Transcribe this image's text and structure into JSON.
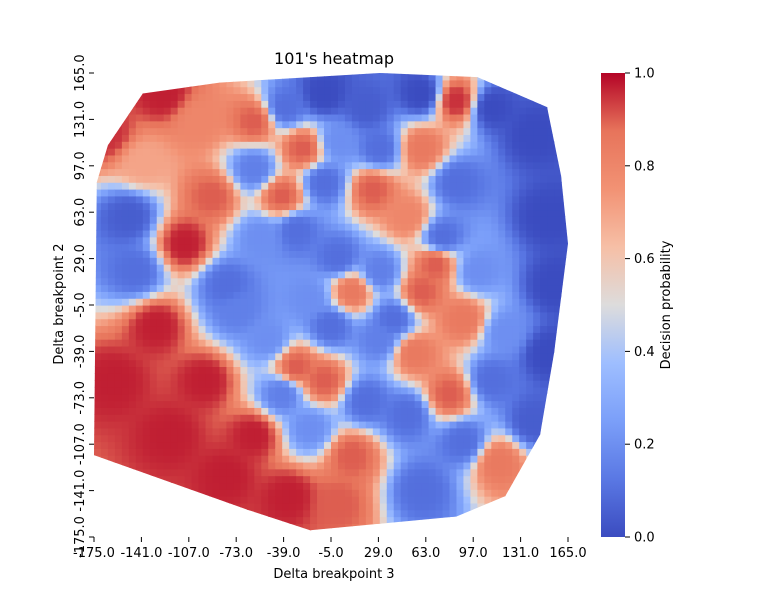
{
  "chart_data": {
    "type": "heatmap",
    "title": "101's heatmap",
    "xlabel": "Delta breakpoint 3",
    "ylabel": "Delta breakpoint 2",
    "colorbar_label": "Decision probability",
    "colormap": "coolwarm",
    "colors": {
      "low": "#3b4cc0",
      "mid": "#dddcdc",
      "high": "#b40426"
    },
    "x_ticks": [
      "-175.0",
      "-141.0",
      "-107.0",
      "-73.0",
      "-39.0",
      "-5.0",
      "29.0",
      "63.0",
      "97.0",
      "131.0",
      "165.0"
    ],
    "y_ticks": [
      "165.0",
      "131.0",
      "97.0",
      "63.0",
      "29.0",
      "-5.0",
      "-39.0",
      "-73.0",
      "-107.0",
      "-141.0",
      "-175.0"
    ],
    "xlim": [
      -175,
      165
    ],
    "ylim": [
      -175,
      165
    ],
    "colorbar_ticks": [
      "0.0",
      "0.2",
      "0.4",
      "0.6",
      "0.8",
      "1.0"
    ],
    "colorbar_range": [
      0,
      1
    ],
    "hull": [
      [
        -175,
        -115
      ],
      [
        -65,
        -155
      ],
      [
        -20,
        -170
      ],
      [
        85,
        -160
      ],
      [
        120,
        -145
      ],
      [
        145,
        -100
      ],
      [
        155,
        -40
      ],
      [
        160,
        0
      ],
      [
        165,
        40
      ],
      [
        160,
        90
      ],
      [
        150,
        140
      ],
      [
        100,
        162
      ],
      [
        30,
        165
      ],
      [
        -85,
        158
      ],
      [
        -140,
        150
      ],
      [
        -165,
        112
      ],
      [
        -173,
        85
      ]
    ],
    "samples": [
      {
        "x": -150,
        "y": 60,
        "v": 0.05
      },
      {
        "x": -145,
        "y": 20,
        "v": 0.1
      },
      {
        "x": -80,
        "y": 10,
        "v": 0.1
      },
      {
        "x": -72,
        "y": -8,
        "v": 0.15
      },
      {
        "x": -38,
        "y": 140,
        "v": 0.1
      },
      {
        "x": -10,
        "y": 150,
        "v": 0.0
      },
      {
        "x": 20,
        "y": 140,
        "v": 0.05
      },
      {
        "x": 60,
        "y": 150,
        "v": 0.0
      },
      {
        "x": 85,
        "y": 145,
        "v": 0.95
      },
      {
        "x": 110,
        "y": 140,
        "v": 0.0
      },
      {
        "x": 140,
        "y": 120,
        "v": 0.0
      },
      {
        "x": 150,
        "y": 60,
        "v": 0.0
      },
      {
        "x": 155,
        "y": 10,
        "v": 0.0
      },
      {
        "x": 150,
        "y": -40,
        "v": 0.0
      },
      {
        "x": 140,
        "y": -90,
        "v": 0.05
      },
      {
        "x": 115,
        "y": -120,
        "v": 0.85
      },
      {
        "x": 90,
        "y": -105,
        "v": 0.1
      },
      {
        "x": 60,
        "y": -140,
        "v": 0.1
      },
      {
        "x": 10,
        "y": -115,
        "v": 0.9
      },
      {
        "x": -20,
        "y": -95,
        "v": 0.2
      },
      {
        "x": -40,
        "y": -70,
        "v": 0.15
      },
      {
        "x": -10,
        "y": -60,
        "v": 0.9
      },
      {
        "x": 20,
        "y": -75,
        "v": 0.1
      },
      {
        "x": 50,
        "y": -85,
        "v": 0.1
      },
      {
        "x": 80,
        "y": -70,
        "v": 0.9
      },
      {
        "x": 110,
        "y": -60,
        "v": 0.1
      },
      {
        "x": 120,
        "y": -25,
        "v": 0.2
      },
      {
        "x": 90,
        "y": -15,
        "v": 0.85
      },
      {
        "x": 60,
        "y": 5,
        "v": 0.9
      },
      {
        "x": 30,
        "y": 20,
        "v": 0.15
      },
      {
        "x": 0,
        "y": 30,
        "v": 0.1
      },
      {
        "x": -30,
        "y": 50,
        "v": 0.1
      },
      {
        "x": -40,
        "y": 75,
        "v": 0.9
      },
      {
        "x": -10,
        "y": 85,
        "v": 0.1
      },
      {
        "x": 25,
        "y": 80,
        "v": 0.9
      },
      {
        "x": 50,
        "y": 60,
        "v": 0.8
      },
      {
        "x": 75,
        "y": 45,
        "v": 0.1
      },
      {
        "x": 85,
        "y": 85,
        "v": 0.1
      },
      {
        "x": 60,
        "y": 110,
        "v": 0.85
      },
      {
        "x": 30,
        "y": 110,
        "v": 0.1
      },
      {
        "x": 0,
        "y": 115,
        "v": 0.2
      },
      {
        "x": -25,
        "y": 110,
        "v": 0.9
      },
      {
        "x": -60,
        "y": 95,
        "v": 0.15
      },
      {
        "x": -90,
        "y": 75,
        "v": 0.9
      },
      {
        "x": -55,
        "y": 45,
        "v": 0.2
      },
      {
        "x": -20,
        "y": 0,
        "v": 0.2
      },
      {
        "x": -5,
        "y": -20,
        "v": 0.1
      },
      {
        "x": 10,
        "y": 5,
        "v": 0.85
      },
      {
        "x": 30,
        "y": -30,
        "v": 0.15
      },
      {
        "x": 55,
        "y": -40,
        "v": 0.85
      },
      {
        "x": 40,
        "y": -15,
        "v": 0.1
      },
      {
        "x": -50,
        "y": -30,
        "v": 0.2
      },
      {
        "x": -30,
        "y": -50,
        "v": 0.9
      },
      {
        "x": 70,
        "y": 25,
        "v": 0.9
      },
      {
        "x": 100,
        "y": 20,
        "v": 0.2
      },
      {
        "x": -60,
        "y": 130,
        "v": 0.9
      },
      {
        "x": -100,
        "y": 130,
        "v": 0.8
      },
      {
        "x": -140,
        "y": 100,
        "v": 0.7
      },
      {
        "x": -130,
        "y": -20,
        "v": 0.97
      },
      {
        "x": -160,
        "y": -60,
        "v": 0.97
      },
      {
        "x": -120,
        "y": -100,
        "v": 0.97
      },
      {
        "x": -80,
        "y": -130,
        "v": 0.97
      },
      {
        "x": -95,
        "y": -60,
        "v": 0.97
      },
      {
        "x": -110,
        "y": 40,
        "v": 0.97
      },
      {
        "x": -165,
        "y": 120,
        "v": 0.95
      },
      {
        "x": -125,
        "y": 150,
        "v": 0.97
      },
      {
        "x": -35,
        "y": -145,
        "v": 0.97
      },
      {
        "x": -60,
        "y": -100,
        "v": 0.97
      },
      {
        "x": 0,
        "y": -150,
        "v": 0.9
      }
    ]
  }
}
